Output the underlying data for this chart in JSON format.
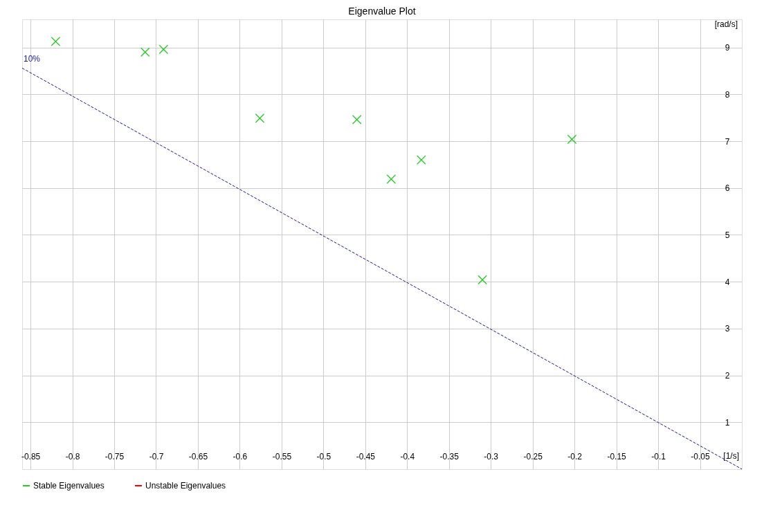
{
  "chart_data": {
    "type": "scatter",
    "title": "Eigenvalue Plot",
    "xlabel": "[1/s]",
    "ylabel": "[rad/s]",
    "xlim": [
      -0.86,
      0
    ],
    "ylim": [
      0,
      9.6
    ],
    "xticks": [
      -0.85,
      -0.8,
      -0.75,
      -0.7,
      -0.65,
      -0.6,
      -0.55,
      -0.5,
      -0.45,
      -0.4,
      -0.35,
      -0.3,
      -0.25,
      -0.2,
      -0.15,
      -0.1,
      -0.05
    ],
    "yticks": [
      1,
      2,
      3,
      4,
      5,
      6,
      7,
      8,
      9
    ],
    "grid": true,
    "legend": "bottom",
    "marker": "cross",
    "series": [
      {
        "name": "Stable Eigenvalues",
        "color": "#22cc22",
        "x": [
          -0.82,
          -0.713,
          -0.691,
          -0.576,
          -0.46,
          -0.419,
          -0.383,
          -0.31,
          -0.203
        ],
        "values": [
          9.13,
          8.9,
          8.96,
          7.49,
          7.46,
          6.19,
          6.6,
          4.04,
          7.04
        ]
      },
      {
        "name": "Unstable Eigenvalues",
        "color": "#ff0000"
      },
      {
        "type": "line",
        "color": "#1a1a99",
        "line_style": "dashed",
        "marker": "none",
        "x": [
          -0.86,
          0
        ],
        "values": [
          8.56,
          0
        ]
      }
    ],
    "annotations": [
      {
        "text": "10%",
        "x": -0.86,
        "y": 8.56
      }
    ]
  }
}
